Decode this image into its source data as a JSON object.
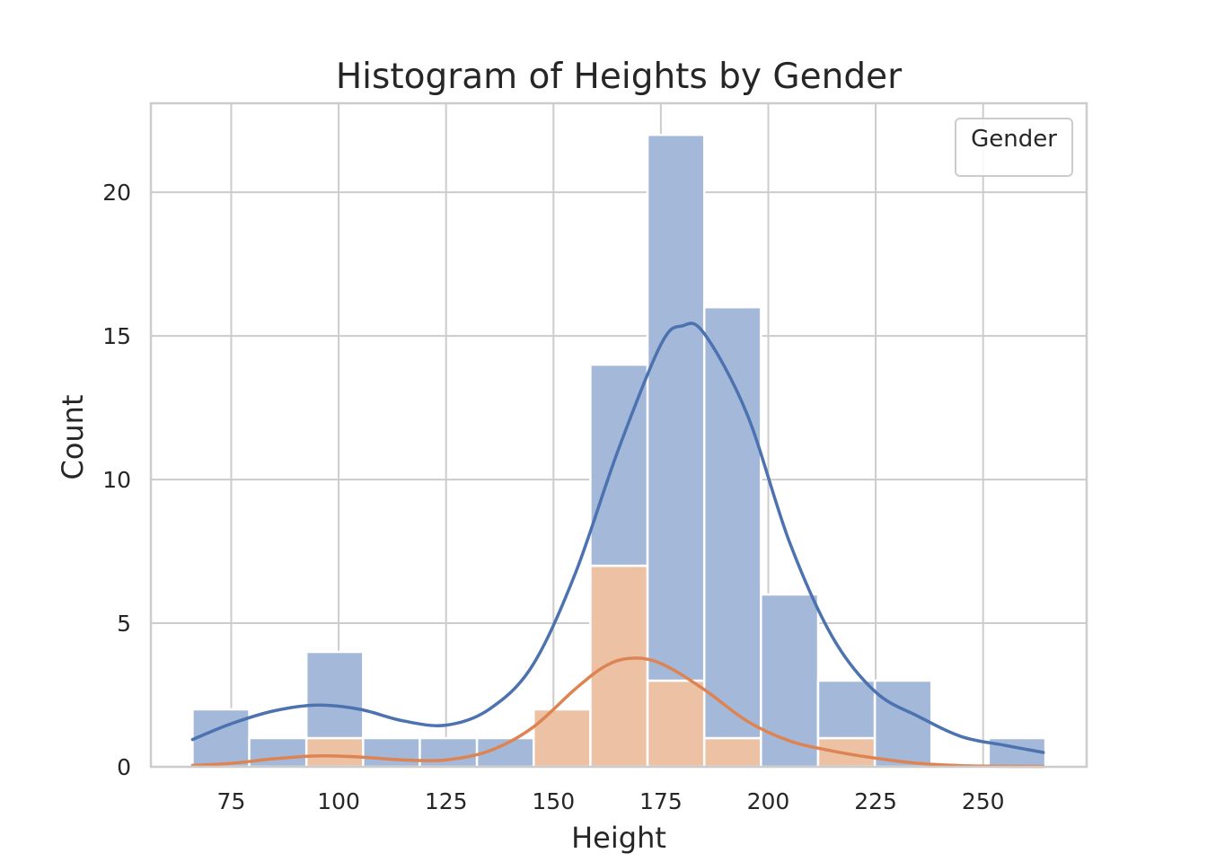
{
  "chart_data": {
    "type": "bar",
    "title": "Histogram of Heights by Gender",
    "xlabel": "Height",
    "ylabel": "Count",
    "xlim": [
      56.3,
      274.1
    ],
    "ylim": [
      0,
      23.1
    ],
    "x_ticks": [
      75,
      100,
      125,
      150,
      175,
      200,
      225,
      250
    ],
    "y_ticks": [
      0,
      5,
      10,
      15,
      20
    ],
    "grid": true,
    "stacked": true,
    "legend": {
      "title": "Gender",
      "placement": "top-right",
      "entries": []
    },
    "colors": {
      "series_a_fill": "#a4b8d9",
      "series_b_fill": "#ecc1a4",
      "series_a_line": "#4c72b0",
      "series_b_line": "#dd8452",
      "grid": "#cccccc",
      "frame": "#cccccc"
    },
    "bin_edges": [
      66.0,
      79.2,
      92.5,
      105.7,
      118.9,
      132.2,
      145.4,
      158.6,
      171.9,
      185.1,
      198.3,
      211.6,
      224.8,
      238.0,
      251.3,
      264.5
    ],
    "series": [
      {
        "values": [
          2,
          1,
          3,
          1,
          1,
          1,
          0,
          7,
          19,
          15,
          6,
          2,
          3,
          0,
          1
        ]
      },
      {
        "values": [
          0,
          0,
          1,
          0,
          0,
          0,
          2,
          7,
          3,
          1,
          0,
          1,
          0,
          0,
          0
        ]
      }
    ],
    "kde": [
      {
        "x": [
          66,
          75,
          85,
          95,
          105,
          115,
          125,
          135,
          145,
          155,
          165,
          175,
          180,
          185,
          195,
          205,
          215,
          225,
          235,
          245,
          255,
          264
        ],
        "y": [
          0.95,
          1.5,
          1.95,
          2.15,
          2.0,
          1.6,
          1.45,
          2.0,
          3.5,
          6.7,
          11.0,
          14.7,
          15.35,
          15.1,
          12.3,
          7.8,
          4.5,
          2.6,
          1.75,
          1.05,
          0.75,
          0.5
        ]
      },
      {
        "x": [
          66,
          75,
          85,
          95,
          105,
          115,
          125,
          135,
          145,
          155,
          162,
          168,
          175,
          185,
          195,
          205,
          215,
          225,
          235,
          245,
          255,
          264
        ],
        "y": [
          0.05,
          0.12,
          0.28,
          0.38,
          0.34,
          0.24,
          0.24,
          0.55,
          1.35,
          2.7,
          3.5,
          3.78,
          3.6,
          2.7,
          1.6,
          0.9,
          0.55,
          0.3,
          0.12,
          0.04,
          0.02,
          0.01
        ]
      }
    ]
  }
}
